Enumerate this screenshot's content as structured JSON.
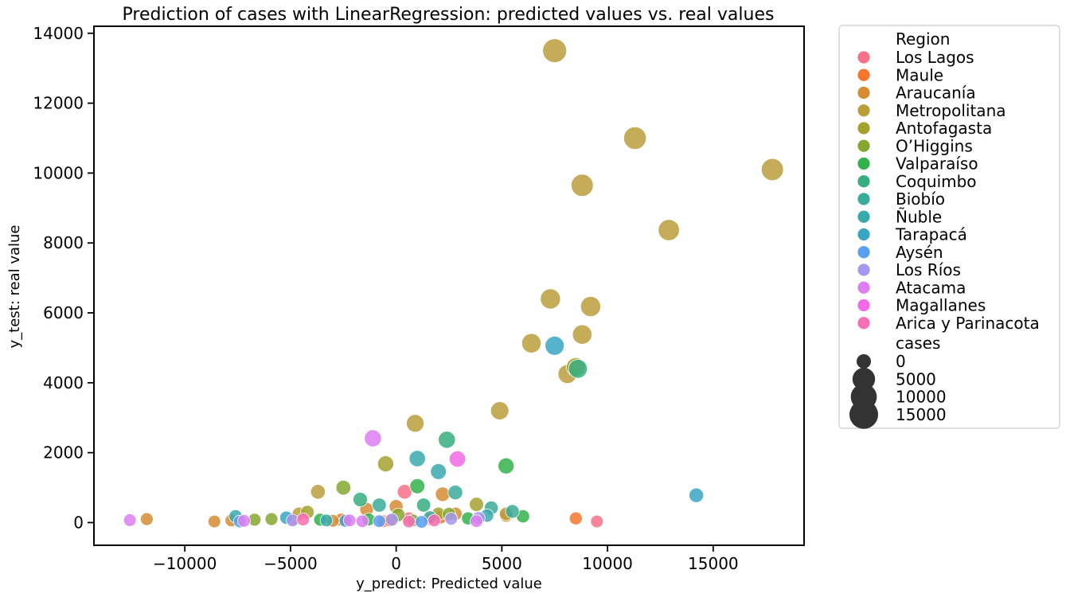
{
  "chart_data": {
    "type": "scatter",
    "title": "Prediction of cases with LinearRegression: predicted values vs. real values",
    "xlabel": "y_predict: Predicted value",
    "ylabel": "y_test: real value",
    "xlim": [
      -14300,
      19300
    ],
    "ylim": [
      -650,
      14200
    ],
    "xticks": [
      -10000,
      -5000,
      0,
      5000,
      10000,
      15000
    ],
    "xtick_labels": [
      "−10000",
      "−5000",
      "0",
      "5000",
      "10000",
      "15000"
    ],
    "yticks": [
      0,
      2000,
      4000,
      6000,
      8000,
      10000,
      12000,
      14000
    ],
    "ytick_labels": [
      "0",
      "2000",
      "4000",
      "6000",
      "8000",
      "10000",
      "12000",
      "14000"
    ],
    "grid": false,
    "legend": {
      "placement": "outside-right",
      "hue_title": "Region",
      "size_title": "cases",
      "size_levels": [
        0,
        5000,
        10000,
        15000
      ],
      "size_labels": [
        "0",
        "5000",
        "10000",
        "15000"
      ]
    },
    "series": [
      {
        "name": "Los Lagos",
        "color": "#f77189",
        "points": [
          [
            9500,
            30,
            50
          ],
          [
            400,
            880,
            800
          ],
          [
            -600,
            40,
            50
          ],
          [
            600,
            120,
            100
          ],
          [
            1600,
            100,
            80
          ]
        ]
      },
      {
        "name": "Maule",
        "color": "#f2762b",
        "points": [
          [
            8500,
            120,
            100
          ],
          [
            -4900,
            100,
            80
          ],
          [
            -2600,
            80,
            60
          ],
          [
            -300,
            60,
            50
          ],
          [
            2100,
            150,
            120
          ]
        ]
      },
      {
        "name": "Araucanía",
        "color": "#d58c32",
        "points": [
          [
            -11800,
            100,
            80
          ],
          [
            -8600,
            30,
            50
          ],
          [
            -7800,
            60,
            50
          ],
          [
            -3000,
            50,
            50
          ],
          [
            -1400,
            380,
            300
          ],
          [
            0,
            460,
            400
          ],
          [
            2200,
            810,
            700
          ],
          [
            5200,
            200,
            150
          ],
          [
            2800,
            250,
            200
          ]
        ]
      },
      {
        "name": "Metropolitana",
        "color": "#bb9e3c",
        "points": [
          [
            7500,
            13500,
            15000
          ],
          [
            11300,
            11000,
            12000
          ],
          [
            17800,
            10100,
            11000
          ],
          [
            8800,
            9650,
            11000
          ],
          [
            12900,
            8370,
            9000
          ],
          [
            9200,
            6180,
            7000
          ],
          [
            7300,
            6400,
            7000
          ],
          [
            8800,
            5380,
            6000
          ],
          [
            6400,
            5130,
            6000
          ],
          [
            8100,
            4250,
            5000
          ],
          [
            4900,
            3200,
            4000
          ],
          [
            900,
            2840,
            3500
          ],
          [
            -3700,
            880,
            800
          ],
          [
            -4600,
            250,
            200
          ],
          [
            5200,
            250,
            200
          ]
        ]
      },
      {
        "name": "Antofagasta",
        "color": "#a4a22f",
        "points": [
          [
            -500,
            1680,
            1800
          ],
          [
            8500,
            4450,
            5000
          ],
          [
            -4200,
            300,
            250
          ],
          [
            3800,
            520,
            500
          ],
          [
            2000,
            250,
            200
          ]
        ]
      },
      {
        "name": "O’Higgins",
        "color": "#84a82f",
        "points": [
          [
            -6700,
            80,
            60
          ],
          [
            -5900,
            100,
            80
          ],
          [
            -2500,
            1000,
            900
          ],
          [
            100,
            220,
            200
          ],
          [
            2500,
            240,
            200
          ],
          [
            800,
            60,
            50
          ]
        ]
      },
      {
        "name": "Valparaíso",
        "color": "#33b14a",
        "points": [
          [
            5200,
            1620,
            1800
          ],
          [
            1000,
            1040,
            1000
          ],
          [
            -3600,
            80,
            60
          ],
          [
            3400,
            120,
            100
          ],
          [
            6000,
            180,
            150
          ],
          [
            -1300,
            90,
            80
          ]
        ]
      },
      {
        "name": "Coquimbo",
        "color": "#37ae80",
        "points": [
          [
            2400,
            2370,
            2800
          ],
          [
            8600,
            4400,
            5000
          ],
          [
            -1700,
            660,
            600
          ],
          [
            1300,
            500,
            450
          ]
        ]
      },
      {
        "name": "Biobío",
        "color": "#39ab99",
        "points": [
          [
            2800,
            860,
            800
          ],
          [
            -800,
            500,
            450
          ],
          [
            1600,
            150,
            120
          ],
          [
            4500,
            420,
            400
          ],
          [
            5500,
            320,
            300
          ]
        ]
      },
      {
        "name": "Ñuble",
        "color": "#3aa9ad",
        "points": [
          [
            1000,
            1830,
            2000
          ],
          [
            2000,
            1460,
            1600
          ],
          [
            -7600,
            180,
            150
          ],
          [
            -3300,
            60,
            50
          ],
          [
            4300,
            200,
            150
          ]
        ]
      },
      {
        "name": "Tarapacá",
        "color": "#3aa6c4",
        "points": [
          [
            7500,
            5060,
            5500
          ],
          [
            14200,
            780,
            700
          ],
          [
            -5200,
            140,
            120
          ],
          [
            -2400,
            50,
            50
          ]
        ]
      },
      {
        "name": "Aysén",
        "color": "#599ff0",
        "points": [
          [
            -7400,
            30,
            50
          ],
          [
            -800,
            40,
            50
          ],
          [
            1200,
            20,
            40
          ]
        ]
      },
      {
        "name": "Los Ríos",
        "color": "#a596f0",
        "points": [
          [
            -4900,
            60,
            50
          ],
          [
            -200,
            80,
            60
          ],
          [
            2600,
            110,
            80
          ],
          [
            3900,
            130,
            100
          ]
        ]
      },
      {
        "name": "Atacama",
        "color": "#dc7ef1",
        "points": [
          [
            -1100,
            2410,
            2800
          ],
          [
            -12600,
            70,
            50
          ],
          [
            -7200,
            50,
            50
          ],
          [
            -1600,
            40,
            50
          ],
          [
            -2200,
            60,
            50
          ],
          [
            3800,
            40,
            50
          ]
        ]
      },
      {
        "name": "Magallanes",
        "color": "#f16ae3",
        "points": [
          [
            2900,
            1820,
            2000
          ]
        ]
      },
      {
        "name": "Arica y Parinacota",
        "color": "#f66fb4",
        "points": [
          [
            1800,
            60,
            50
          ],
          [
            -4400,
            90,
            70
          ],
          [
            600,
            30,
            40
          ]
        ]
      }
    ]
  }
}
